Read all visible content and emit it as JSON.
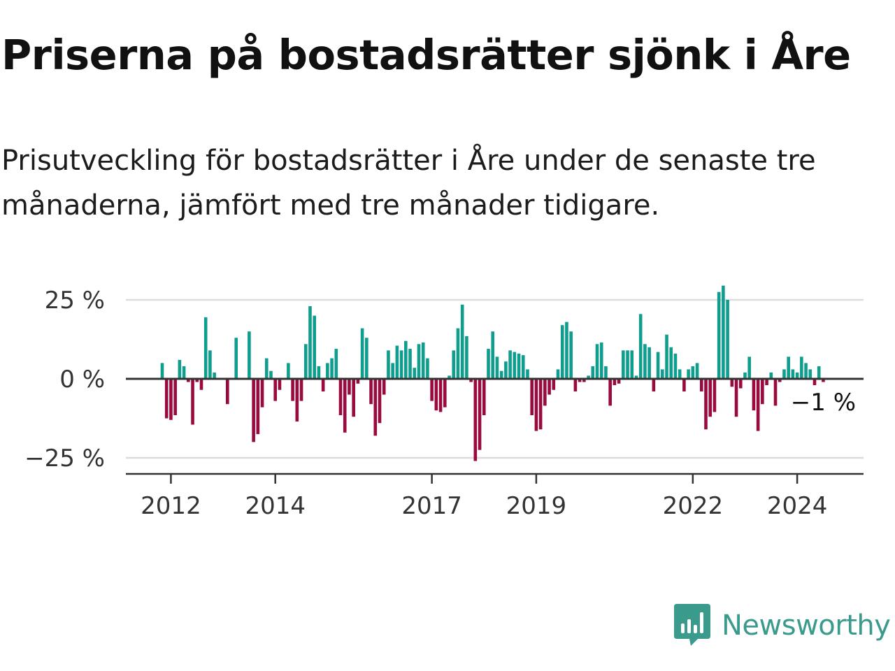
{
  "title": "Priserna på bostadsrätter sjönk i Åre",
  "subtitle": "Prisutveckling för bostadsrätter i Åre under de senaste tre månaderna, jämfört med tre månader tidigare.",
  "brand": {
    "name": "Newsworthy",
    "color": "#3a9b8c",
    "icon": "newsworthy-logo-icon"
  },
  "colors": {
    "positive": "#0f9e8e",
    "negative": "#9b0a3e",
    "grid": "#dcdcdc",
    "axis": "#333333"
  },
  "chart_data": {
    "type": "bar",
    "x_start": "2011-11",
    "y_unit": "%",
    "ylim": [
      -30,
      30
    ],
    "yticks": [
      25,
      0,
      -25
    ],
    "ytick_labels": [
      "25 %",
      "0 %",
      "−25 %"
    ],
    "xticks": [
      {
        "label": "2012",
        "index": 2
      },
      {
        "label": "2014",
        "index": 26
      },
      {
        "label": "2017",
        "index": 62
      },
      {
        "label": "2019",
        "index": 86
      },
      {
        "label": "2022",
        "index": 122
      },
      {
        "label": "2024",
        "index": 146
      }
    ],
    "last_value_label": "−1 %",
    "grid": true,
    "values": [
      5,
      -12.5,
      -13,
      -11.5,
      6,
      4,
      -1,
      -14.5,
      -1,
      -3.5,
      19.5,
      9,
      2,
      0,
      0,
      -8,
      0,
      13,
      0,
      0,
      15,
      -20,
      -17.5,
      -9,
      6.5,
      2.5,
      -7,
      -3.5,
      0,
      5,
      -7,
      -13.5,
      -7,
      11,
      23,
      20,
      4,
      -4,
      5,
      6.5,
      9.5,
      -11.5,
      -17,
      -5,
      -12,
      -1.5,
      16,
      13,
      -8,
      -18,
      -14,
      -5,
      9,
      5,
      10.5,
      9,
      12,
      9.5,
      3.5,
      11,
      11.5,
      6.5,
      -7,
      -10,
      -10.5,
      -9,
      1,
      9,
      16,
      23.5,
      13.5,
      -1,
      -26,
      -22.5,
      -11.5,
      9.5,
      15,
      7,
      2.5,
      5.5,
      9,
      8.5,
      8,
      7.5,
      3,
      -11.5,
      -16.5,
      -16,
      -8.5,
      -5,
      -3.5,
      3,
      17,
      18,
      15,
      -4,
      -1,
      -1,
      1,
      4,
      11,
      11.5,
      4,
      -8.5,
      -2,
      -1.5,
      9,
      9,
      9,
      1,
      20.5,
      11,
      10,
      -4,
      8.5,
      3,
      14,
      10,
      8,
      3,
      -4,
      3,
      4,
      5,
      -4,
      -16,
      -12,
      -10.5,
      27.5,
      29.5,
      25,
      -2.5,
      -12,
      -3,
      2,
      7,
      -10,
      -16.5,
      -8,
      -2,
      2,
      -8.5,
      -1,
      3,
      7,
      3,
      2,
      7,
      5,
      3,
      -2,
      4,
      -1
    ]
  }
}
